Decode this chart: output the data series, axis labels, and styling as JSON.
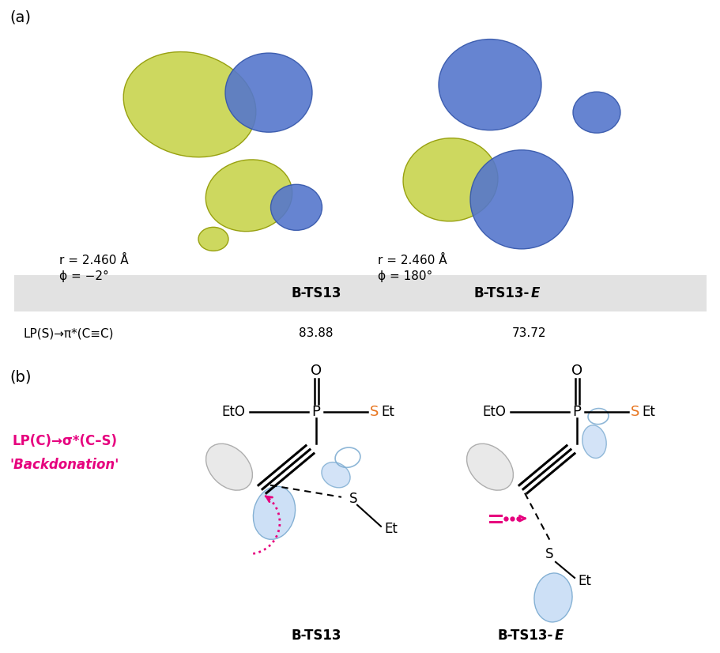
{
  "panel_a_label": "(a)",
  "panel_b_label": "(b)",
  "table_header_bg": "#e2e2e2",
  "table_col1": "B-TS13",
  "table_col2_prefix": "B-TS13-",
  "table_col2_italic": "E",
  "table_row_label": "LP(S)→π*(C≡C)",
  "table_val1": "83.88",
  "table_val2": "73.72",
  "left_r_label": "r = 2.460 Å",
  "left_phi_label": "ϕ = −2°",
  "right_r_label": "r = 2.460 Å",
  "right_phi_label": "ϕ = 180°",
  "lp_label_line1": "LP(C)→σ*(C–S)",
  "lp_label_line2": "'Backdonation'",
  "lp_label_color": "#e6007e",
  "bts13_label": "B-TS13",
  "orange_color": "#e87722",
  "yg_color": "#c8d44e",
  "yg_edge": "#909900",
  "blue_lobe": "#5577cc",
  "blue_lobe_edge": "#3355aa",
  "orbital_fill": "#c8ddf5",
  "orbital_edge": "#7aaad0",
  "orbital_fill2": "#dce8f5",
  "fig_width": 9.12,
  "fig_height": 8.26,
  "background": "#ffffff"
}
